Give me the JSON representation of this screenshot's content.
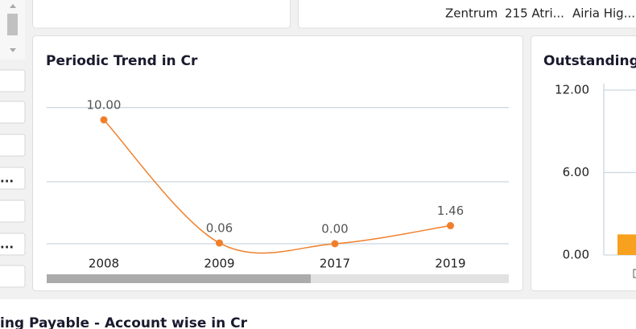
{
  "top_panel": {
    "items": [
      "Zentrum",
      "215 Atri...",
      "Airia Hig..."
    ]
  },
  "sidebar": {
    "items": [
      "...",
      "..."
    ]
  },
  "section_title": "ing Payable - Account wise in Cr",
  "chart_data": [
    {
      "type": "line",
      "title": "Periodic Trend in Cr",
      "categories": [
        "2008",
        "2009",
        "2017",
        "2019"
      ],
      "values": [
        10,
        0.06,
        0,
        1.46
      ],
      "value_labels": [
        "10.00",
        "0.06",
        "0.00",
        "1.46"
      ],
      "color": "#f07f2c",
      "ylim": [
        0,
        11
      ],
      "yticks": [
        0,
        5,
        11
      ],
      "grid": true
    },
    {
      "type": "bar",
      "title": "Outstanding",
      "categories": [
        null
      ],
      "values": [
        1.5
      ],
      "color": "#f7a11e",
      "ylim": [
        0,
        12
      ],
      "yticks": [
        {
          "value": 0,
          "label": "0.00"
        },
        {
          "value": 6,
          "label": "6.00"
        },
        {
          "value": 12,
          "label": "12.00"
        }
      ],
      "grid": true
    }
  ]
}
